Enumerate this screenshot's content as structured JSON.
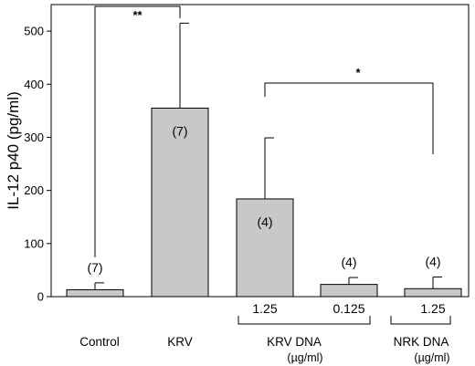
{
  "chart_data": {
    "type": "bar",
    "ylabel": "IL-12 p40 (pg/ml)",
    "ylim": [
      0,
      550
    ],
    "yticks": [
      0,
      100,
      200,
      300,
      400,
      500
    ],
    "bar_color": "#c8c8c8",
    "categories": [
      "Control",
      "KRV",
      "KRV DNA 1.25",
      "KRV DNA 0.125",
      "NRK DNA 1.25"
    ],
    "values": [
      13,
      355,
      184,
      23,
      15
    ],
    "errors": [
      13,
      160,
      115,
      13,
      22
    ],
    "n_labels": [
      "(7)",
      "(7)",
      "(4)",
      "(4)",
      "(4)"
    ],
    "conc_labels": [
      "",
      "",
      "1.25",
      "0.125",
      "1.25"
    ],
    "group_labels": {
      "control": "Control",
      "krv": "KRV",
      "krv_dna": "KRV DNA",
      "krv_dna_unit": "(µg/ml)",
      "nrk_dna": "NRK DNA",
      "nrk_dna_unit": "(µg/ml)"
    },
    "significance": [
      {
        "from": 0,
        "to": 1,
        "label": "**"
      },
      {
        "from": 2,
        "to": 4,
        "label": "*"
      }
    ]
  }
}
